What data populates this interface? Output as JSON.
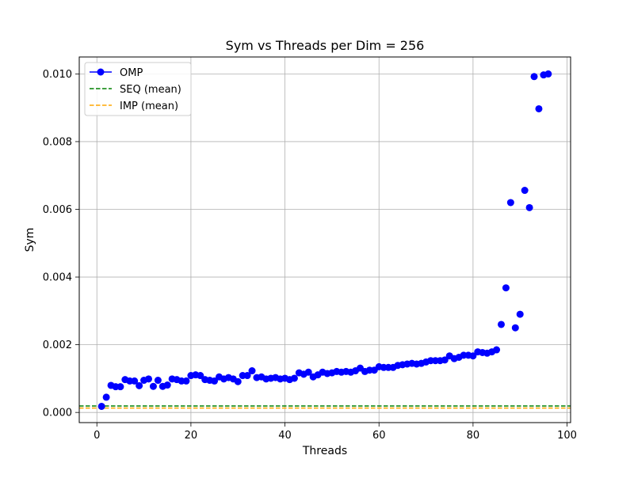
{
  "chart_data": {
    "type": "scatter",
    "title": "Sym vs Threads per Dim = 256",
    "xlabel": "Threads",
    "ylabel": "Sym",
    "xlim": [
      -3.75,
      100.75
    ],
    "ylim": [
      -0.0003,
      0.0105
    ],
    "xticks": [
      0,
      20,
      40,
      60,
      80,
      100
    ],
    "xtick_labels": [
      "0",
      "20",
      "40",
      "60",
      "80",
      "100"
    ],
    "yticks": [
      0.0,
      0.002,
      0.004,
      0.006,
      0.008,
      0.01
    ],
    "ytick_labels": [
      "0.000",
      "0.002",
      "0.004",
      "0.006",
      "0.008",
      "0.010"
    ],
    "grid": true,
    "legend_position": "top-left",
    "series": [
      {
        "name": "OMP",
        "style": "marker",
        "color": "#0000ff",
        "x": [
          1,
          2,
          3,
          4,
          5,
          6,
          7,
          8,
          9,
          10,
          11,
          12,
          13,
          14,
          15,
          16,
          17,
          18,
          19,
          20,
          21,
          22,
          23,
          24,
          25,
          26,
          27,
          28,
          29,
          30,
          31,
          32,
          33,
          34,
          35,
          36,
          37,
          38,
          39,
          40,
          41,
          42,
          43,
          44,
          45,
          46,
          47,
          48,
          49,
          50,
          51,
          52,
          53,
          54,
          55,
          56,
          57,
          58,
          59,
          60,
          61,
          62,
          63,
          64,
          65,
          66,
          67,
          68,
          69,
          70,
          71,
          72,
          73,
          74,
          75,
          76,
          77,
          78,
          79,
          80,
          81,
          82,
          83,
          84,
          85,
          86,
          87,
          88,
          89,
          90,
          91,
          92,
          93,
          94,
          95,
          96
        ],
        "y": [
          0.00018,
          0.00045,
          0.0008,
          0.00076,
          0.00076,
          0.00097,
          0.00093,
          0.00093,
          0.00079,
          0.00095,
          0.00099,
          0.00077,
          0.00095,
          0.00077,
          0.00081,
          0.00099,
          0.00097,
          0.00093,
          0.00093,
          0.00109,
          0.00111,
          0.00109,
          0.00097,
          0.00095,
          0.00093,
          0.00105,
          0.00099,
          0.00103,
          0.00099,
          0.00091,
          0.00109,
          0.00109,
          0.00123,
          0.00103,
          0.00105,
          0.00099,
          0.00101,
          0.00103,
          0.00099,
          0.00101,
          0.00097,
          0.00101,
          0.00117,
          0.00113,
          0.00119,
          0.00105,
          0.00111,
          0.00119,
          0.00115,
          0.00117,
          0.00121,
          0.00119,
          0.00121,
          0.00119,
          0.00123,
          0.00131,
          0.00121,
          0.00125,
          0.00125,
          0.00135,
          0.00133,
          0.00133,
          0.00133,
          0.00139,
          0.00141,
          0.00143,
          0.00145,
          0.00143,
          0.00145,
          0.00149,
          0.00153,
          0.00153,
          0.00153,
          0.00155,
          0.00167,
          0.00159,
          0.00163,
          0.00169,
          0.00169,
          0.00167,
          0.00179,
          0.00177,
          0.00175,
          0.00179,
          0.00185,
          0.0026,
          0.00368,
          0.0062,
          0.0025,
          0.0029,
          0.00656,
          0.00605,
          0.00992,
          0.00897,
          0.00997,
          0.01
        ]
      },
      {
        "name": "SEQ (mean)",
        "style": "dashed",
        "color": "#008000",
        "y": 0.00019
      },
      {
        "name": "IMP (mean)",
        "style": "dashed",
        "color": "#ffa500",
        "y": 0.00013
      }
    ]
  }
}
